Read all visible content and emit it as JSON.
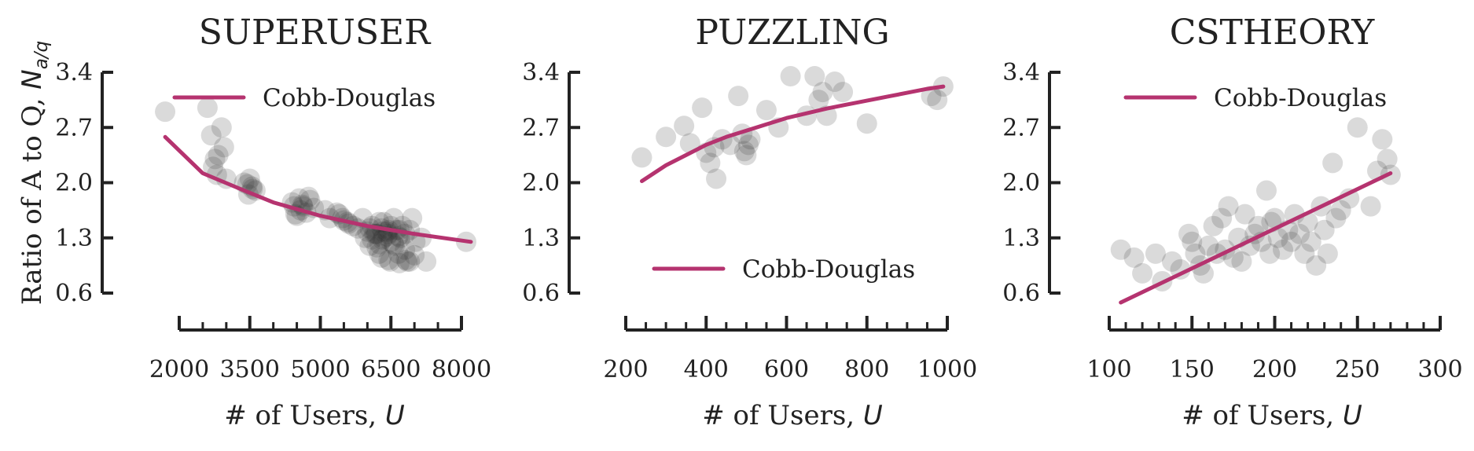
{
  "figure": {
    "ylabel_main": "Ratio of A to Q, ",
    "ylabel_sym": "N",
    "ylabel_sub": "a/q",
    "xlabel_main": "# of Users, ",
    "xlabel_sym": "U"
  },
  "colors": {
    "fit": "#b5336f",
    "points": "#333333"
  },
  "chart_data": [
    {
      "type": "scatter",
      "title": "SUPERUSER",
      "xlabel": "# of Users, U",
      "ylabel": "Ratio of A to Q, N_a/q",
      "xticks": [
        2000,
        3500,
        5000,
        6500,
        8000
      ],
      "xminor_step": 500,
      "xlim": [
        2000,
        8000
      ],
      "yticks": [
        0.6,
        1.3,
        2.0,
        2.7,
        3.4
      ],
      "ylim": [
        0.6,
        3.4
      ],
      "legend": {
        "label": "Cobb-Douglas",
        "position": "upper"
      },
      "series": [
        {
          "name": "Cobb-Douglas",
          "kind": "line",
          "x": [
            1700,
            2500,
            3300,
            4000,
            5000,
            6000,
            7000,
            8200
          ],
          "y": [
            2.58,
            2.12,
            1.92,
            1.75,
            1.58,
            1.45,
            1.35,
            1.25
          ]
        },
        {
          "kind": "scatter",
          "x": [
            1700,
            2600,
            2680,
            2760,
            2830,
            2900,
            2950,
            3000,
            2720,
            2800,
            3380,
            3450,
            3500,
            3560,
            3620,
            3470,
            3550,
            4400,
            4470,
            4550,
            4630,
            4700,
            4780,
            4860,
            4500,
            4620,
            4750,
            4440,
            4580,
            5100,
            5200,
            5400,
            5500,
            5600,
            5350,
            5470,
            5580,
            5700,
            5800,
            5900,
            6000,
            6100,
            6200,
            6300,
            6350,
            6450,
            5950,
            6050,
            6150,
            6250,
            6330,
            6420,
            6500,
            6560,
            6620,
            6700,
            6800,
            6900,
            6950,
            7020,
            7150,
            6100,
            6180,
            6260,
            6340,
            6420,
            6500,
            6580,
            6660,
            6740,
            6200,
            6320,
            6440,
            6560,
            6680,
            6800,
            6300,
            6480,
            6660,
            6820,
            6900,
            7000,
            6050,
            6250,
            6450,
            6680,
            6850,
            7250,
            8100
          ],
          "y": [
            2.9,
            2.95,
            2.6,
            2.3,
            2.35,
            2.7,
            2.45,
            2.05,
            2.2,
            2.1,
            2.0,
            1.98,
            2.05,
            1.92,
            1.9,
            1.85,
            1.95,
            1.75,
            1.6,
            1.8,
            1.7,
            1.62,
            1.78,
            1.68,
            1.58,
            1.72,
            1.82,
            1.7,
            1.65,
            1.65,
            1.55,
            1.6,
            1.52,
            1.48,
            1.62,
            1.55,
            1.5,
            1.45,
            1.42,
            1.55,
            1.38,
            1.45,
            1.35,
            1.42,
            1.5,
            1.4,
            1.3,
            1.42,
            1.35,
            1.5,
            1.38,
            1.32,
            1.45,
            1.55,
            1.4,
            1.3,
            1.35,
            1.4,
            1.55,
            1.25,
            1.3,
            1.28,
            1.35,
            1.22,
            1.3,
            1.38,
            1.25,
            1.2,
            1.32,
            1.45,
            1.18,
            1.28,
            1.35,
            1.22,
            1.4,
            1.15,
            1.05,
            1.0,
            1.1,
            1.02,
            1.0,
            1.08,
            1.2,
            1.1,
            1.02,
            0.98,
            1.0,
            1.0,
            1.25
          ]
        }
      ]
    },
    {
      "type": "scatter",
      "title": "PUZZLING",
      "xlabel": "# of Users, U",
      "xticks": [
        200,
        400,
        600,
        800,
        1000
      ],
      "xminor_step": 50,
      "xlim": [
        200,
        1000
      ],
      "yticks": [
        0.6,
        1.3,
        2.0,
        2.7,
        3.4
      ],
      "ylim": [
        0.6,
        3.4
      ],
      "legend": {
        "label": "Cobb-Douglas",
        "position": "lower"
      },
      "series": [
        {
          "name": "Cobb-Douglas",
          "kind": "line",
          "x": [
            240,
            300,
            350,
            400,
            450,
            500,
            550,
            600,
            650,
            700,
            750,
            800,
            850,
            900,
            950,
            990
          ],
          "y": [
            2.02,
            2.22,
            2.35,
            2.48,
            2.58,
            2.66,
            2.74,
            2.82,
            2.88,
            2.94,
            2.99,
            3.04,
            3.09,
            3.14,
            3.19,
            3.22
          ]
        },
        {
          "kind": "scatter",
          "x": [
            240,
            300,
            345,
            360,
            390,
            400,
            410,
            420,
            425,
            440,
            460,
            480,
            490,
            495,
            500,
            505,
            510,
            550,
            580,
            610,
            650,
            670,
            680,
            690,
            700,
            720,
            740,
            800,
            960,
            975,
            990
          ],
          "y": [
            2.32,
            2.58,
            2.72,
            2.5,
            2.95,
            2.38,
            2.25,
            2.45,
            2.05,
            2.55,
            2.48,
            3.1,
            2.62,
            2.4,
            2.35,
            2.48,
            2.55,
            2.92,
            2.7,
            3.35,
            2.85,
            3.35,
            3.05,
            3.15,
            2.85,
            3.28,
            3.15,
            2.75,
            3.1,
            3.05,
            3.22
          ]
        }
      ]
    },
    {
      "type": "scatter",
      "title": "CSTHEORY",
      "xlabel": "# of Users, U",
      "xticks": [
        100,
        150,
        200,
        250,
        300
      ],
      "xminor_step": 10,
      "xlim": [
        100,
        300
      ],
      "yticks": [
        0.6,
        1.3,
        2.0,
        2.7,
        3.4
      ],
      "ylim": [
        0.6,
        3.4
      ],
      "legend": {
        "label": "Cobb-Douglas",
        "position": "upper"
      },
      "series": [
        {
          "name": "Cobb-Douglas",
          "kind": "line",
          "x": [
            107,
            270
          ],
          "y": [
            0.48,
            2.12
          ]
        },
        {
          "kind": "scatter",
          "x": [
            107,
            115,
            120,
            128,
            132,
            138,
            143,
            148,
            150,
            152,
            155,
            157,
            160,
            163,
            165,
            168,
            170,
            172,
            175,
            178,
            180,
            182,
            185,
            188,
            190,
            192,
            195,
            197,
            198,
            200,
            202,
            205,
            208,
            210,
            212,
            215,
            218,
            220,
            222,
            225,
            228,
            230,
            232,
            235,
            237,
            240,
            245,
            250,
            258,
            262,
            265,
            268,
            270
          ],
          "y": [
            1.15,
            1.05,
            0.85,
            1.1,
            0.75,
            1.0,
            0.9,
            1.35,
            1.25,
            1.1,
            0.95,
            0.85,
            1.2,
            1.45,
            1.1,
            1.55,
            1.15,
            1.7,
            1.05,
            1.3,
            1.0,
            1.6,
            1.2,
            1.35,
            1.45,
            1.25,
            1.9,
            1.1,
            1.5,
            1.55,
            1.3,
            1.15,
            1.4,
            1.25,
            1.6,
            1.35,
            1.1,
            1.5,
            1.25,
            0.95,
            1.7,
            1.4,
            1.1,
            2.25,
            1.55,
            1.65,
            1.8,
            2.7,
            1.7,
            2.15,
            2.55,
            2.3,
            2.1
          ]
        }
      ]
    }
  ]
}
